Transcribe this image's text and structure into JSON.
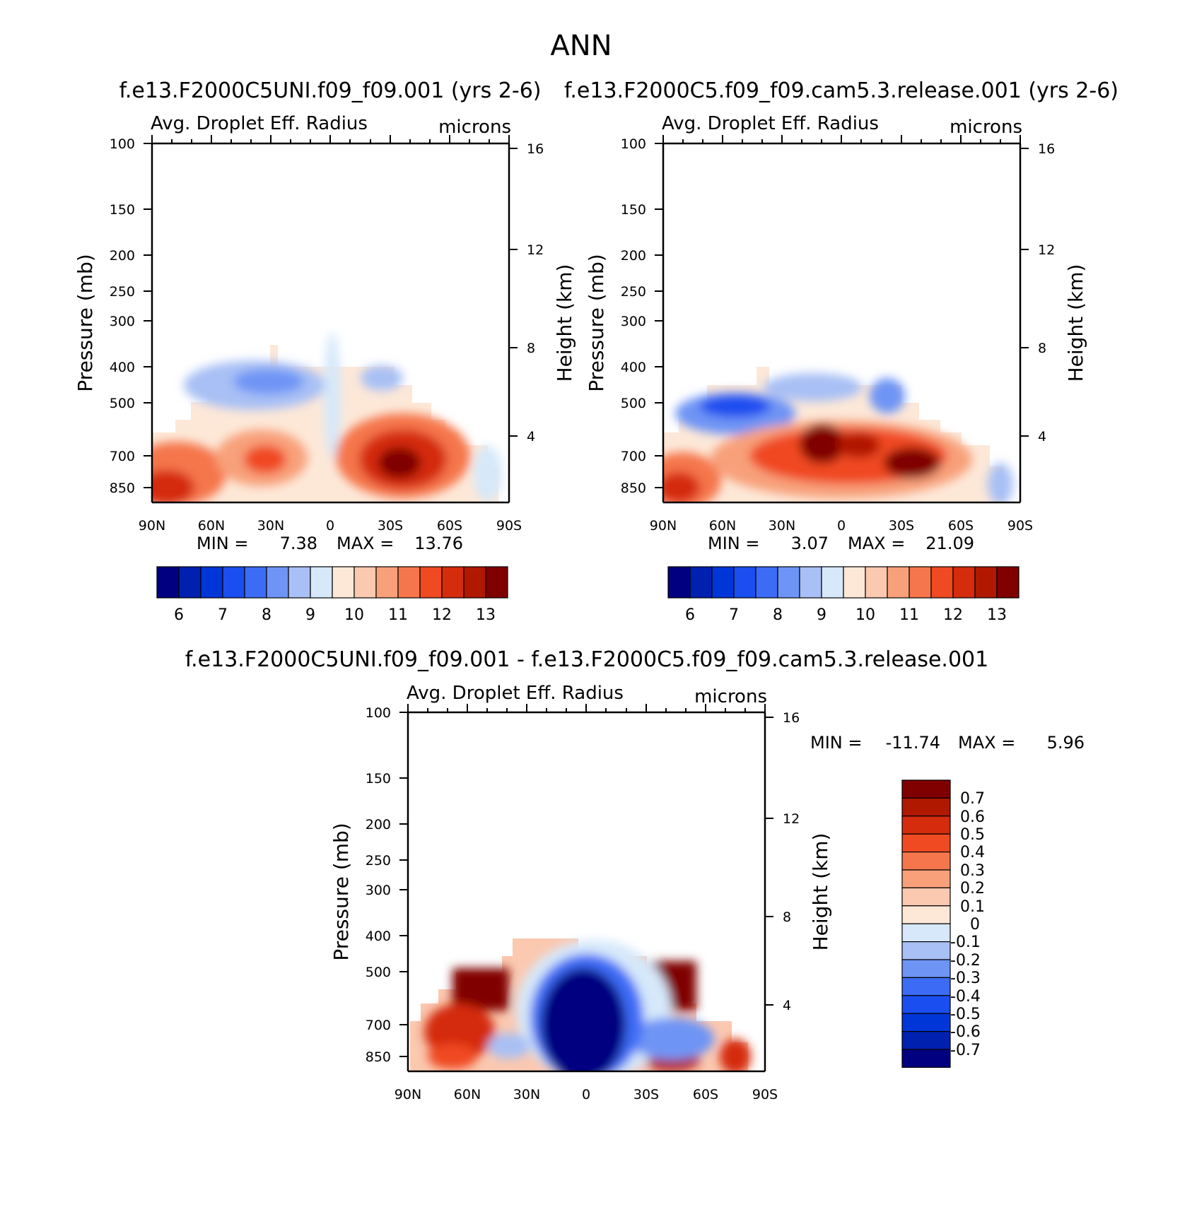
{
  "figure": {
    "title": "ANN",
    "colors": {
      "abs_levels": [
        "#000080",
        "#0020b0",
        "#0036d8",
        "#1a4ef0",
        "#3c6cf5",
        "#6e94f5",
        "#a8c0f5",
        "#d6e8fa",
        "#fde8d8",
        "#fbc8b0",
        "#f8a07a",
        "#f5764c",
        "#f04a22",
        "#d42c0c",
        "#b01800",
        "#800000"
      ],
      "diff_levels": [
        "#800000",
        "#b01800",
        "#d42c0c",
        "#f04a22",
        "#f5764c",
        "#f8a07a",
        "#fbc8b0",
        "#fde8d8",
        "#d6e8fa",
        "#a8c0f5",
        "#6e94f5",
        "#3c6cf5",
        "#1a4ef0",
        "#0036d8",
        "#0020b0",
        "#000080"
      ]
    }
  },
  "chart_data": [
    {
      "type": "heatmap",
      "panel": "top-left",
      "title": "f.e13.F2000C5UNI.f09_f09.001 (yrs 2-6)",
      "subtitle_left": "Avg. Droplet Eff. Radius",
      "subtitle_right": "microns",
      "ylabel": "Pressure (mb)",
      "y2label": "Height (km)",
      "xticks": [
        "90N",
        "60N",
        "30N",
        "0",
        "30S",
        "60S",
        "90S"
      ],
      "yticks": [
        "100",
        "150",
        "200",
        "250",
        "300",
        "400",
        "500",
        "700",
        "850"
      ],
      "y2ticks": [
        "16",
        "12",
        "8",
        "4"
      ],
      "min_label": "MIN =",
      "min_value": "7.38",
      "max_label": "MAX =",
      "max_value": "13.76",
      "colorbar_labels": [
        "6",
        "7",
        "8",
        "9",
        "10",
        "11",
        "12",
        "13"
      ],
      "xlim": [
        90,
        -90
      ],
      "ylim": [
        1000,
        100
      ]
    },
    {
      "type": "heatmap",
      "panel": "top-right",
      "title": "f.e13.F2000C5.f09_f09.cam5.3.release.001 (yrs 2-6)",
      "subtitle_left": "Avg. Droplet Eff. Radius",
      "subtitle_right": "microns",
      "ylabel": "Pressure (mb)",
      "y2label": "Height (km)",
      "xticks": [
        "90N",
        "60N",
        "30N",
        "0",
        "30S",
        "60S",
        "90S"
      ],
      "yticks": [
        "100",
        "150",
        "200",
        "250",
        "300",
        "400",
        "500",
        "700",
        "850"
      ],
      "y2ticks": [
        "16",
        "12",
        "8",
        "4"
      ],
      "min_label": "MIN =",
      "min_value": "3.07",
      "max_label": "MAX =",
      "max_value": "21.09",
      "colorbar_labels": [
        "6",
        "7",
        "8",
        "9",
        "10",
        "11",
        "12",
        "13"
      ],
      "xlim": [
        90,
        -90
      ],
      "ylim": [
        1000,
        100
      ]
    },
    {
      "type": "heatmap",
      "panel": "bottom",
      "title": "f.e13.F2000C5UNI.f09_f09.001 - f.e13.F2000C5.f09_f09.cam5.3.release.001",
      "subtitle_left": "Avg. Droplet Eff. Radius",
      "subtitle_right": "microns",
      "ylabel": "Pressure (mb)",
      "y2label": "Height (km)",
      "xticks": [
        "90N",
        "60N",
        "30N",
        "0",
        "30S",
        "60S",
        "90S"
      ],
      "yticks": [
        "100",
        "150",
        "200",
        "250",
        "300",
        "400",
        "500",
        "700",
        "850"
      ],
      "y2ticks": [
        "16",
        "12",
        "8",
        "4"
      ],
      "min_label": "MIN =",
      "min_value": "-11.74",
      "max_label": "MAX =",
      "max_value": "5.96",
      "colorbar_labels": [
        "0.7",
        "0.6",
        "0.5",
        "0.4",
        "0.3",
        "0.2",
        "0.1",
        "0",
        "-0.1",
        "-0.2",
        "-0.3",
        "-0.4",
        "-0.5",
        "-0.6",
        "-0.7"
      ],
      "xlim": [
        90,
        -90
      ],
      "ylim": [
        1000,
        100
      ]
    }
  ]
}
